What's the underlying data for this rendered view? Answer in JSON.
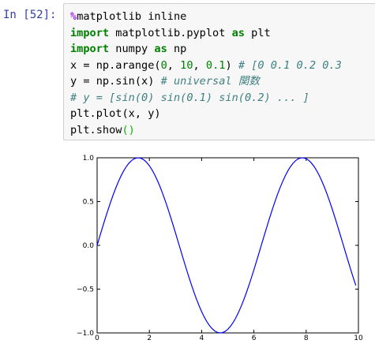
{
  "cell": {
    "prompt": "In [52]:",
    "lines": [
      {
        "parts": [
          {
            "t": "%",
            "c": "magic"
          },
          {
            "t": "matplotlib inline",
            "c": ""
          }
        ]
      },
      {
        "parts": [
          {
            "t": "import",
            "c": "kw"
          },
          {
            "t": " matplotlib.pyplot ",
            "c": ""
          },
          {
            "t": "as",
            "c": "kw"
          },
          {
            "t": " plt",
            "c": ""
          }
        ]
      },
      {
        "parts": [
          {
            "t": "import",
            "c": "kw"
          },
          {
            "t": " numpy ",
            "c": ""
          },
          {
            "t": "as",
            "c": "kw"
          },
          {
            "t": " np",
            "c": ""
          }
        ]
      },
      {
        "parts": [
          {
            "t": "x = np.arange(",
            "c": ""
          },
          {
            "t": "0",
            "c": "num"
          },
          {
            "t": ", ",
            "c": ""
          },
          {
            "t": "10",
            "c": "num"
          },
          {
            "t": ", ",
            "c": ""
          },
          {
            "t": "0.1",
            "c": "num"
          },
          {
            "t": ") ",
            "c": ""
          },
          {
            "t": "# [0 0.1 0.2 0.3",
            "c": "cm"
          }
        ]
      },
      {
        "parts": [
          {
            "t": "y = np.sin(x) ",
            "c": ""
          },
          {
            "t": "# universal 関数",
            "c": "cm"
          }
        ]
      },
      {
        "parts": [
          {
            "t": "# y = [sin(0) sin(0.1) sin(0.2) ... ]",
            "c": "cm"
          }
        ]
      },
      {
        "parts": [
          {
            "t": "plt.plot(x, y)",
            "c": ""
          }
        ]
      },
      {
        "parts": [
          {
            "t": "plt.show",
            "c": ""
          },
          {
            "t": "()",
            "c": "paren"
          }
        ]
      }
    ]
  },
  "chart_data": {
    "type": "line",
    "function": "sin(x)",
    "x_start": 0,
    "x_stop": 10,
    "x_step": 0.1,
    "series": [
      {
        "color": "#0000ff"
      }
    ],
    "xlim": [
      0,
      10
    ],
    "ylim": [
      -1.0,
      1.0
    ],
    "xticks": [
      0,
      2,
      4,
      6,
      8,
      10
    ],
    "xtick_labels": [
      "0",
      "2",
      "4",
      "6",
      "8",
      "10"
    ],
    "yticks": [
      1.0,
      0.5,
      0.0,
      -0.5,
      -1.0
    ],
    "ytick_labels": [
      "1.0",
      "0.5",
      "0.0",
      "−0.5",
      "−1.0"
    ],
    "title": "",
    "xlabel": "",
    "ylabel": "",
    "grid": false
  }
}
